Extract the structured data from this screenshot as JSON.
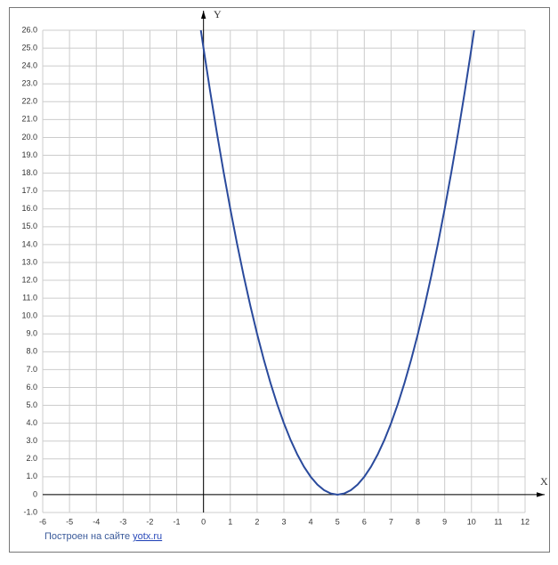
{
  "chart_data": {
    "type": "line",
    "x_label": "X",
    "y_label": "Y",
    "x": [
      -0.1,
      0,
      0.25,
      0.5,
      0.75,
      1,
      1.25,
      1.5,
      1.75,
      2,
      2.25,
      2.5,
      2.75,
      3,
      3.25,
      3.5,
      3.75,
      4,
      4.25,
      4.5,
      4.75,
      5,
      5.25,
      5.5,
      5.75,
      6,
      6.25,
      6.5,
      6.75,
      7,
      7.25,
      7.5,
      7.75,
      8,
      8.25,
      8.5,
      8.75,
      9,
      9.25,
      9.5,
      9.75,
      10,
      10.1
    ],
    "values": [
      26.01,
      25,
      22.5625,
      20.25,
      18.0625,
      16,
      14.0625,
      12.25,
      10.5625,
      9,
      7.5625,
      6.25,
      5.0625,
      4,
      3.0625,
      2.25,
      1.5625,
      1,
      0.5625,
      0.25,
      0.0625,
      0,
      0.0625,
      0.25,
      0.5625,
      1,
      1.5625,
      2.25,
      3.0625,
      4,
      5.0625,
      6.25,
      7.5625,
      9,
      10.5625,
      12.25,
      14.0625,
      16,
      18.0625,
      20.25,
      22.5625,
      25,
      26.01
    ],
    "color": "#2a4a9c",
    "xlim": [
      -6,
      12
    ],
    "ylim": [
      -1,
      26
    ],
    "xticks": [
      -6,
      -5,
      -4,
      -3,
      -2,
      -1,
      0,
      1,
      2,
      3,
      4,
      5,
      6,
      7,
      8,
      9,
      10,
      11,
      12
    ],
    "yticks": [
      {
        "value": -1,
        "label": "-1.0"
      },
      0,
      {
        "value": 1,
        "label": "1.0"
      },
      {
        "value": 2,
        "label": "2.0"
      },
      {
        "value": 3,
        "label": "3.0"
      },
      {
        "value": 4,
        "label": "4.0"
      },
      {
        "value": 5,
        "label": "5.0"
      },
      {
        "value": 6,
        "label": "6.0"
      },
      {
        "value": 7,
        "label": "7.0"
      },
      {
        "value": 8,
        "label": "8.0"
      },
      {
        "value": 9,
        "label": "9.0"
      },
      {
        "value": 10,
        "label": "10.0"
      },
      {
        "value": 11,
        "label": "11.0"
      },
      {
        "value": 12,
        "label": "12.0"
      },
      {
        "value": 13,
        "label": "13.0"
      },
      {
        "value": 14,
        "label": "14.0"
      },
      {
        "value": 15,
        "label": "15.0"
      },
      {
        "value": 16,
        "label": "16.0"
      },
      {
        "value": 17,
        "label": "17.0"
      },
      {
        "value": 18,
        "label": "18.0"
      },
      {
        "value": 19,
        "label": "19.0"
      },
      {
        "value": 20,
        "label": "20.0"
      },
      {
        "value": 21,
        "label": "21.0"
      },
      {
        "value": 22,
        "label": "22.0"
      },
      {
        "value": 23,
        "label": "23.0"
      },
      {
        "value": 24,
        "label": "24.0"
      },
      {
        "value": 25,
        "label": "25.0"
      },
      {
        "value": 26,
        "label": "26.0"
      }
    ],
    "grid": true
  },
  "footer": {
    "text": "Построен на сайте",
    "link": "yotx.ru"
  }
}
